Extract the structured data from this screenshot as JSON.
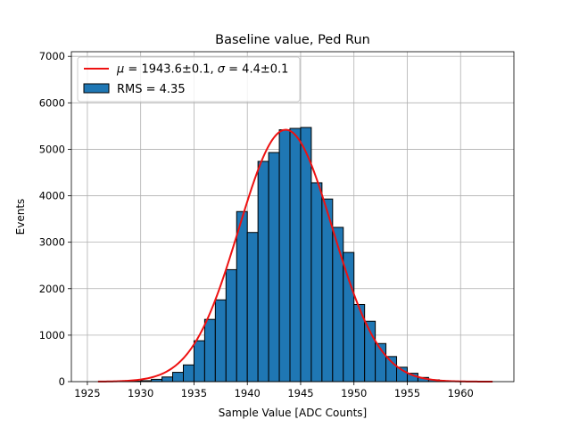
{
  "chart_data": {
    "type": "bar",
    "title": "Baseline value, Ped Run",
    "xlabel": "Sample Value [ADC Counts]",
    "ylabel": "Events",
    "xlim": [
      1923.5,
      1965
    ],
    "ylim": [
      0,
      7100
    ],
    "xticks": [
      1925,
      1930,
      1935,
      1940,
      1945,
      1950,
      1955,
      1960
    ],
    "yticks": [
      0,
      1000,
      2000,
      3000,
      4000,
      5000,
      6000,
      7000
    ],
    "grid": true,
    "legend_position": "top-left",
    "histogram": {
      "bin_start": 1926,
      "bin_width": 1,
      "counts": [
        0,
        0,
        5,
        10,
        20,
        50,
        100,
        200,
        360,
        880,
        1340,
        1760,
        2410,
        3660,
        3210,
        4740,
        4930,
        5420,
        5450,
        5470,
        4280,
        3930,
        3320,
        2780,
        1660,
        1300,
        820,
        540,
        310,
        180,
        90,
        40,
        15,
        5,
        0,
        0,
        0
      ],
      "color": "#1f77b4",
      "legend_label": "RMS = 4.35"
    },
    "fit": {
      "type": "gaussian",
      "mu": 1943.6,
      "sigma": 4.4,
      "amplitude": 5420,
      "x_range": [
        1926,
        1963
      ],
      "color": "#ee1111",
      "legend_label_parts": [
        "μ",
        " = 1943.6±0.1, ",
        "σ",
        " = 4.4±0.1"
      ]
    }
  }
}
